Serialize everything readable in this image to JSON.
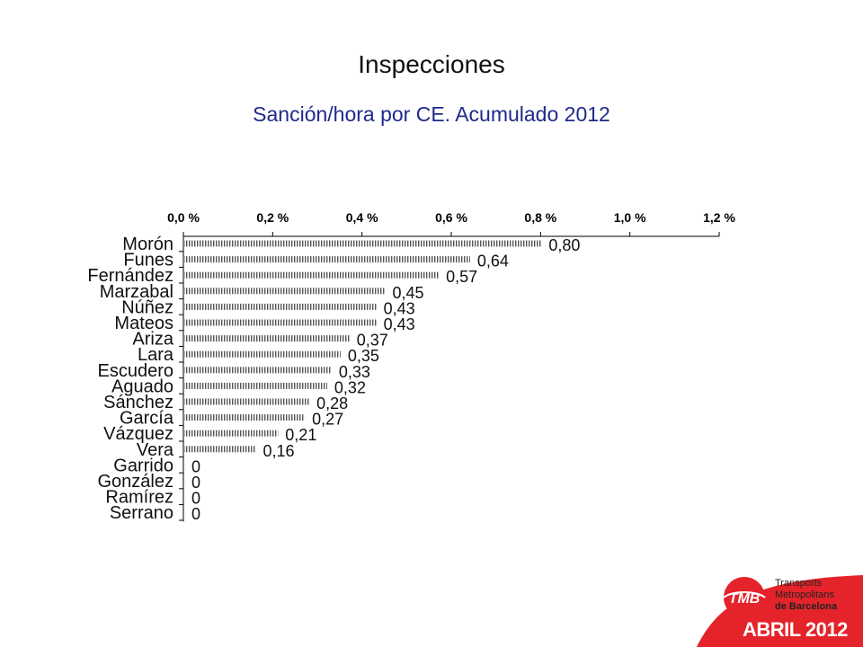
{
  "slide": {
    "title": "Inspecciones",
    "subtitle": "Sanción/hora por CE. Acumulado 2012",
    "brand": {
      "name_line1": "Transports",
      "name_line2": "Metropolitans",
      "name_line3": "de Barcelona",
      "logo_text": "TMB"
    },
    "date_label": "ABRIL 2012",
    "colors": {
      "accent_red": "#e4232a",
      "subtitle_blue": "#1f2a8a"
    }
  },
  "chart_data": {
    "type": "bar",
    "orientation": "horizontal",
    "categories": [
      "Morón",
      "Funes",
      "Fernández",
      "Marzabal",
      "Núñez",
      "Mateos",
      "Ariza",
      "Lara",
      "Escudero",
      "Aguado",
      "Sánchez",
      "García",
      "Vázquez",
      "Vera",
      "Garrido",
      "González",
      "Ramírez",
      "Serrano"
    ],
    "values": [
      0.8,
      0.64,
      0.57,
      0.45,
      0.43,
      0.43,
      0.37,
      0.35,
      0.33,
      0.32,
      0.28,
      0.27,
      0.21,
      0.16,
      0,
      0,
      0,
      0
    ],
    "value_labels": [
      "0,80",
      "0,64",
      "0,57",
      "0,45",
      "0,43",
      "0,43",
      "0,37",
      "0,35",
      "0,33",
      "0,32",
      "0,28",
      "0,27",
      "0,21",
      "0,16",
      "0",
      "0",
      "0",
      "0"
    ],
    "xlim": [
      0,
      1.2
    ],
    "x_ticks": [
      0,
      0.2,
      0.4,
      0.6,
      0.8,
      1.0,
      1.2
    ],
    "x_tick_labels": [
      "0,0 %",
      "0,2 %",
      "0,4 %",
      "0,6 %",
      "0,8 %",
      "1,0 %",
      "1,2 %"
    ],
    "x_axis_position": "top",
    "grid": false,
    "legend": "none"
  }
}
